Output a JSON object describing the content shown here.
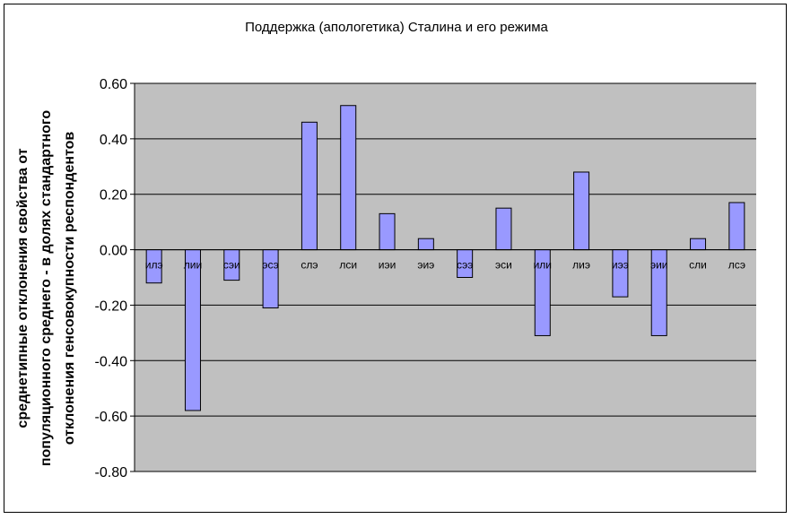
{
  "chart_data": {
    "type": "bar",
    "title": "Поддержка (апологетика) Сталина и его режима",
    "ylabel_lines": [
      "среднетипные отклонения свойства от",
      "популяционного среднего - в долях стандартного",
      "отклонения генсовокупности респондентов"
    ],
    "xlabel": "",
    "categories": [
      "илэ",
      "лии",
      "сэи",
      "эсэ",
      "слэ",
      "лси",
      "иэи",
      "эиэ",
      "сээ",
      "эси",
      "или",
      "лиэ",
      "иээ",
      "эии",
      "сли",
      "лсэ"
    ],
    "values": [
      -0.12,
      -0.58,
      -0.11,
      -0.21,
      0.46,
      0.52,
      0.13,
      0.04,
      -0.1,
      0.15,
      -0.31,
      0.28,
      -0.17,
      -0.31,
      0.04,
      0.17
    ],
    "ylim": [
      -0.8,
      0.6
    ],
    "yticks": [
      0.6,
      0.4,
      0.2,
      0.0,
      -0.2,
      -0.4,
      -0.6,
      -0.8
    ],
    "ytick_labels": [
      "0.60",
      "0.40",
      "0.20",
      "0.00",
      "-0.20",
      "-0.40",
      "-0.60",
      "-0.80"
    ],
    "grid": true,
    "legend": "none",
    "colors": {
      "plot_background": "#c0c0c0",
      "bar_fill": "#9999ff",
      "bar_stroke": "#000000",
      "gridline": "#000000"
    }
  }
}
